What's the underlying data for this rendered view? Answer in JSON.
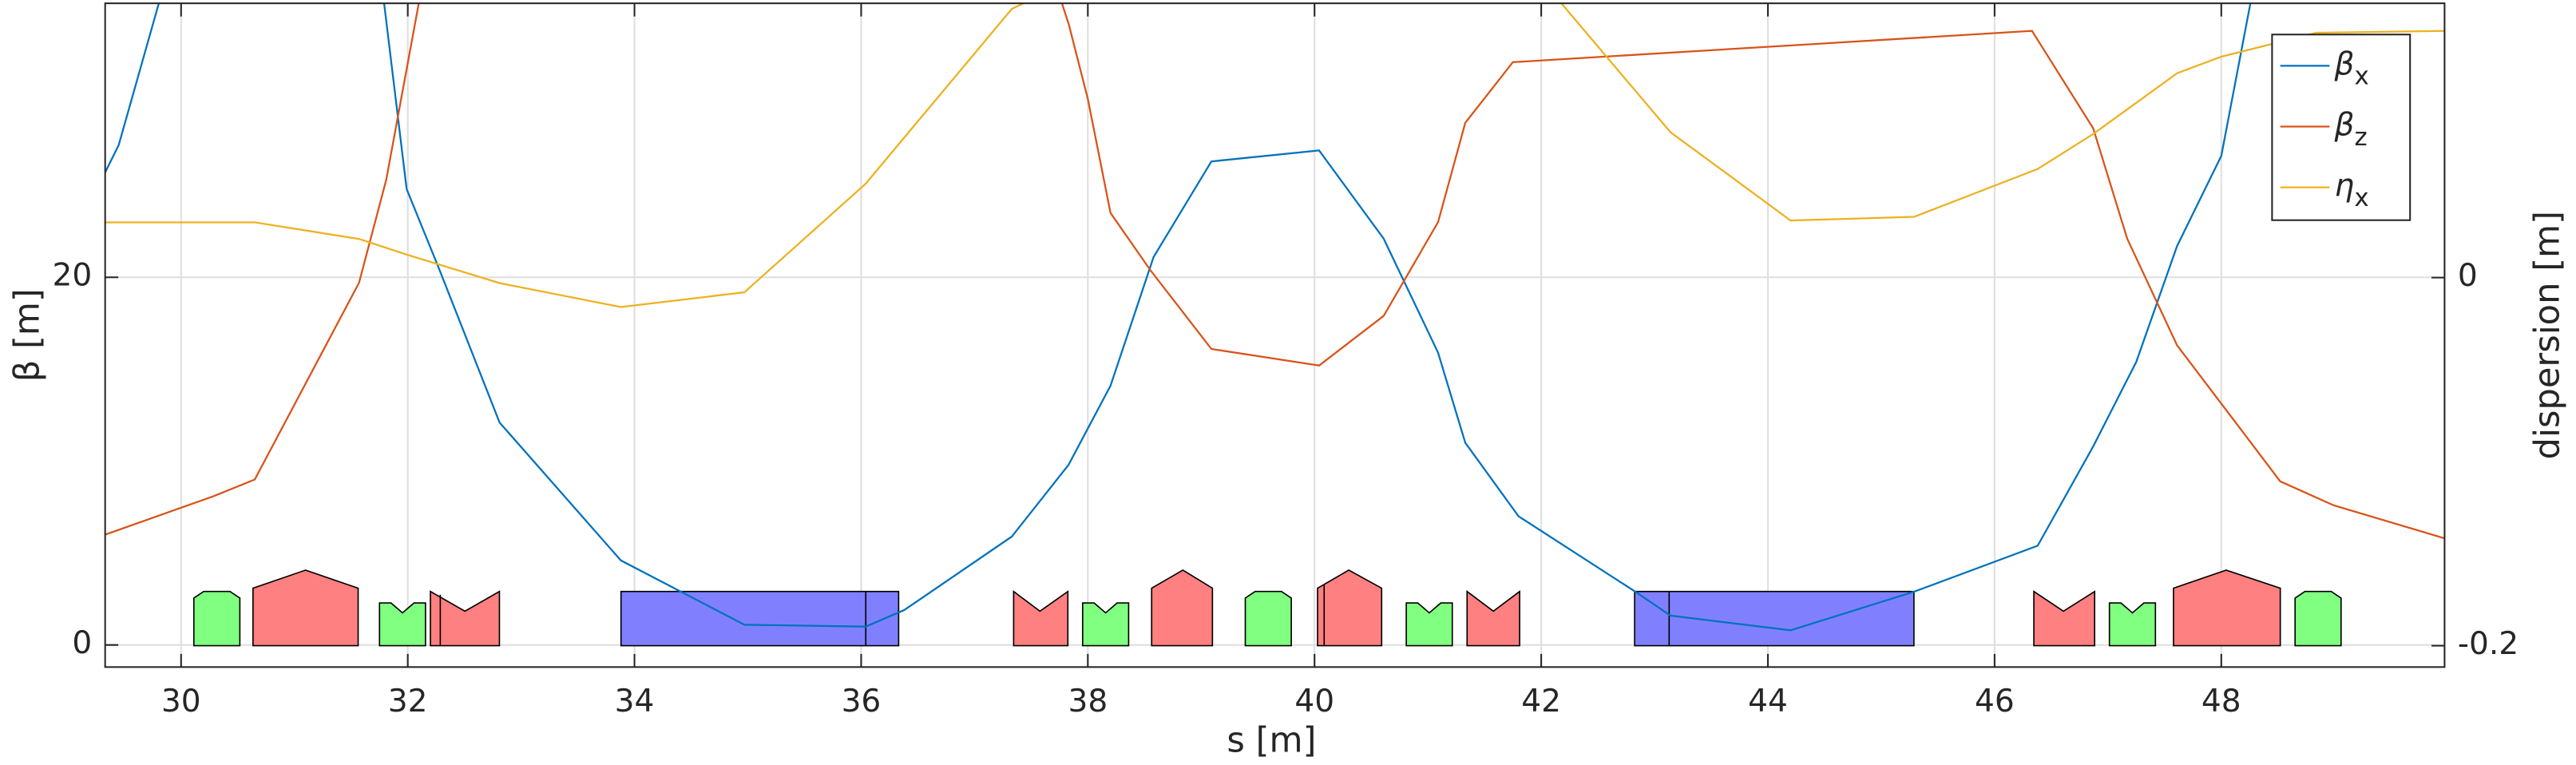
{
  "chart_data": {
    "type": "line",
    "xlabel": "s [m]",
    "ylabel": "β [m]",
    "y2label": "dispersion [m]",
    "xlim": [
      29.33,
      49.97
    ],
    "xticks": [
      30,
      32,
      34,
      36,
      38,
      40,
      42,
      44,
      46,
      48
    ],
    "ylim": [
      -1.2,
      34.9
    ],
    "yticks": [
      0,
      20
    ],
    "y2lim": [
      -0.2116,
      0.149
    ],
    "y2ticks": [
      -0.2,
      0
    ],
    "grid": true,
    "legend": "northeast",
    "series": [
      {
        "name": "β_x",
        "color": "#0072bd",
        "x": [
          29.33,
          29.45,
          29.9,
          31.75,
          31.99,
          32.28,
          32.81,
          33.88,
          34.97,
          36.04,
          36.38,
          37.33,
          37.83,
          38.2,
          38.58,
          39.09,
          40.04,
          40.61,
          41.09,
          41.33,
          41.8,
          42.83,
          43.14,
          44.2,
          45.29,
          46.38,
          46.87,
          47.25,
          47.61,
          48.0,
          48.26,
          48.4
        ],
        "values": [
          25.7,
          27.2,
          37,
          37,
          24.8,
          20.4,
          12.1,
          4.6,
          1.1,
          1.0,
          1.9,
          5.9,
          9.8,
          14.1,
          21.1,
          26.3,
          26.9,
          22.1,
          15.9,
          11.0,
          7.0,
          2.9,
          1.6,
          0.8,
          2.9,
          5.4,
          10.8,
          15.4,
          21.7,
          26.6,
          35,
          40
        ]
      },
      {
        "name": "β_z",
        "color": "#d95319",
        "x": [
          29.33,
          30.29,
          30.65,
          31.57,
          31.81,
          32.1,
          32.3,
          37.5,
          37.83,
          38.0,
          38.2,
          38.55,
          39.09,
          40.04,
          40.61,
          41.09,
          41.33,
          41.75,
          46.33,
          46.87,
          47.17,
          47.61,
          48.52,
          48.99,
          49.97
        ],
        "values": [
          6.0,
          8.1,
          9.0,
          19.7,
          25.3,
          35,
          40,
          40,
          33.8,
          29.7,
          23.5,
          20.4,
          16.1,
          15.2,
          17.9,
          23,
          28.4,
          31.7,
          33.4,
          28.1,
          22.1,
          16.3,
          8.9,
          7.6,
          5.8
        ]
      },
      {
        "name": "η_x",
        "color": "#edb120",
        "axis": "y2",
        "x": [
          29.33,
          30.65,
          31.57,
          31.99,
          32.81,
          33.88,
          34.97,
          36.04,
          37.33,
          37.5,
          37.9,
          41.8,
          42.15,
          43.14,
          44.2,
          45.29,
          46.38,
          46.87,
          47.61,
          48.0,
          48.84,
          49.97
        ],
        "values": [
          0.03,
          0.03,
          0.021,
          0.0125,
          -0.003,
          -0.016,
          -0.008,
          0.051,
          0.146,
          0.151,
          0.2,
          0.2,
          0.151,
          0.079,
          0.031,
          0.033,
          0.059,
          0.078,
          0.111,
          0.12,
          0.133,
          0.134
        ]
      }
    ]
  }
}
